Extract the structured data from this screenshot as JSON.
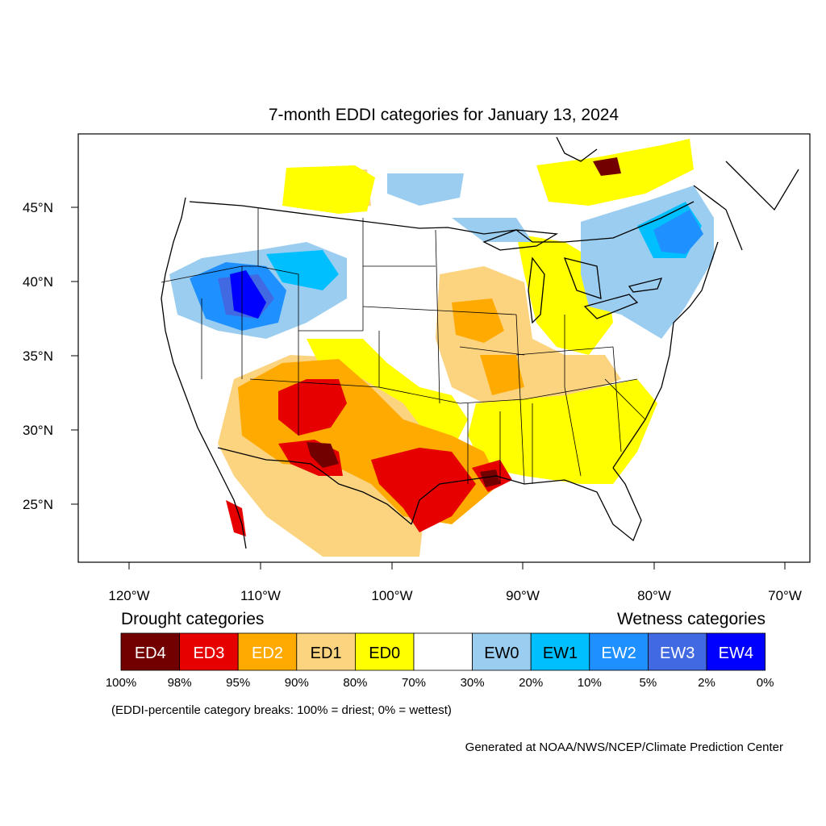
{
  "title": "7-month EDDI categories for January 13, 2024",
  "map": {
    "lat_labels": [
      "45°N",
      "40°N",
      "35°N",
      "30°N",
      "25°N"
    ],
    "lon_labels": [
      "120°W",
      "110°W",
      "100°W",
      "90°W",
      "80°W",
      "70°W"
    ]
  },
  "legend": {
    "drought_heading": "Drought categories",
    "wetness_heading": "Wetness categories",
    "categories": [
      {
        "label": "ED4",
        "color": "#730000",
        "text_color": "#ffffff"
      },
      {
        "label": "ED3",
        "color": "#e60000",
        "text_color": "#ffffff"
      },
      {
        "label": "ED2",
        "color": "#ffaa00",
        "text_color": "#ffffff"
      },
      {
        "label": "ED1",
        "color": "#fcd37f",
        "text_color": "#000000"
      },
      {
        "label": "ED0",
        "color": "#ffff00",
        "text_color": "#000000"
      },
      {
        "label": "",
        "color": "#ffffff",
        "text_color": "#000000"
      },
      {
        "label": "EW0",
        "color": "#9bcdf0",
        "text_color": "#000000"
      },
      {
        "label": "EW1",
        "color": "#00bfff",
        "text_color": "#000000"
      },
      {
        "label": "EW2",
        "color": "#1e90ff",
        "text_color": "#ffffff"
      },
      {
        "label": "EW3",
        "color": "#4169e1",
        "text_color": "#ffffff"
      },
      {
        "label": "EW4",
        "color": "#0000ff",
        "text_color": "#ffffff"
      }
    ],
    "breaks": [
      "100%",
      "98%",
      "95%",
      "90%",
      "80%",
      "70%",
      "30%",
      "20%",
      "10%",
      "5%",
      "2%",
      "0%"
    ]
  },
  "note": "(EDDI-percentile category breaks: 100% = driest; 0% = wettest)",
  "credit": "Generated at NOAA/NWS/NCEP/Climate Prediction Center"
}
